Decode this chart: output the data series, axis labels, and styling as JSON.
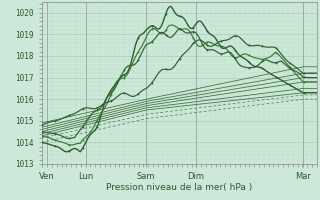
{
  "title": "",
  "xlabel": "Pression niveau de la mer( hPa )",
  "ylabel": "",
  "bg_color": "#cce8d8",
  "grid_color_major": "#aaccbb",
  "grid_color_minor": "#bbddc9",
  "line_color_dark": "#2d5e2d",
  "line_color_medium": "#3a7a3a",
  "ylim": [
    1013.0,
    1020.5
  ],
  "yticks": [
    1013,
    1014,
    1015,
    1016,
    1017,
    1018,
    1019,
    1020
  ],
  "xtick_labels": [
    "Ven",
    "Lun",
    "Sam",
    "Dim",
    "Mar"
  ],
  "xtick_positions": [
    0.02,
    0.16,
    0.38,
    0.56,
    0.95
  ],
  "xlim": [
    0.0,
    1.0
  ],
  "figsize": [
    3.2,
    2.0
  ],
  "dpi": 100
}
